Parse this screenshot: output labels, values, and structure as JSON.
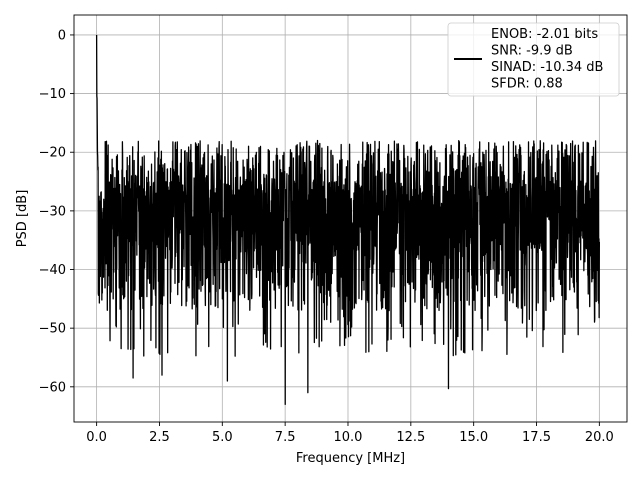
{
  "chart_data": {
    "type": "line",
    "title": "",
    "xlabel": "Frequency [MHz]",
    "ylabel": "PSD [dB]",
    "xlim": [
      -0.9,
      21.1
    ],
    "ylim": [
      -66,
      3.4
    ],
    "xticks": [
      0.0,
      2.5,
      5.0,
      7.5,
      10.0,
      12.5,
      15.0,
      17.5,
      20.0
    ],
    "xtick_labels": [
      "0.0",
      "2.5",
      "5.0",
      "7.5",
      "10.0",
      "12.5",
      "15.0",
      "17.5",
      "20.0"
    ],
    "yticks": [
      0,
      -10,
      -20,
      -30,
      -40,
      -50,
      -60
    ],
    "ytick_labels": [
      "0",
      "−10",
      "−20",
      "−30",
      "−40",
      "−50",
      "−60"
    ],
    "grid": true,
    "legend_position": "top-right",
    "line_color": "#000000",
    "series": [
      {
        "name": "ENOB: -2.01 bits",
        "x_range": [
          0,
          20
        ],
        "peak": {
          "x": 0.0,
          "y": 0.0
        },
        "noise_floor_mean": -31,
        "noise_upper_envelope": -21,
        "noise_lower_envelope": -48,
        "notable_dips": [
          {
            "x": 1.45,
            "y": -58.5
          },
          {
            "x": 2.6,
            "y": -58.0
          },
          {
            "x": 5.2,
            "y": -59.0
          },
          {
            "x": 7.5,
            "y": -63.0
          },
          {
            "x": 8.4,
            "y": -61.0
          },
          {
            "x": 14.0,
            "y": -60.3
          }
        ]
      }
    ],
    "legend_lines": [
      "ENOB: -2.01 bits",
      "SNR: -9.9 dB",
      "SINAD: -10.34 dB",
      "SFDR: 0.88"
    ]
  }
}
